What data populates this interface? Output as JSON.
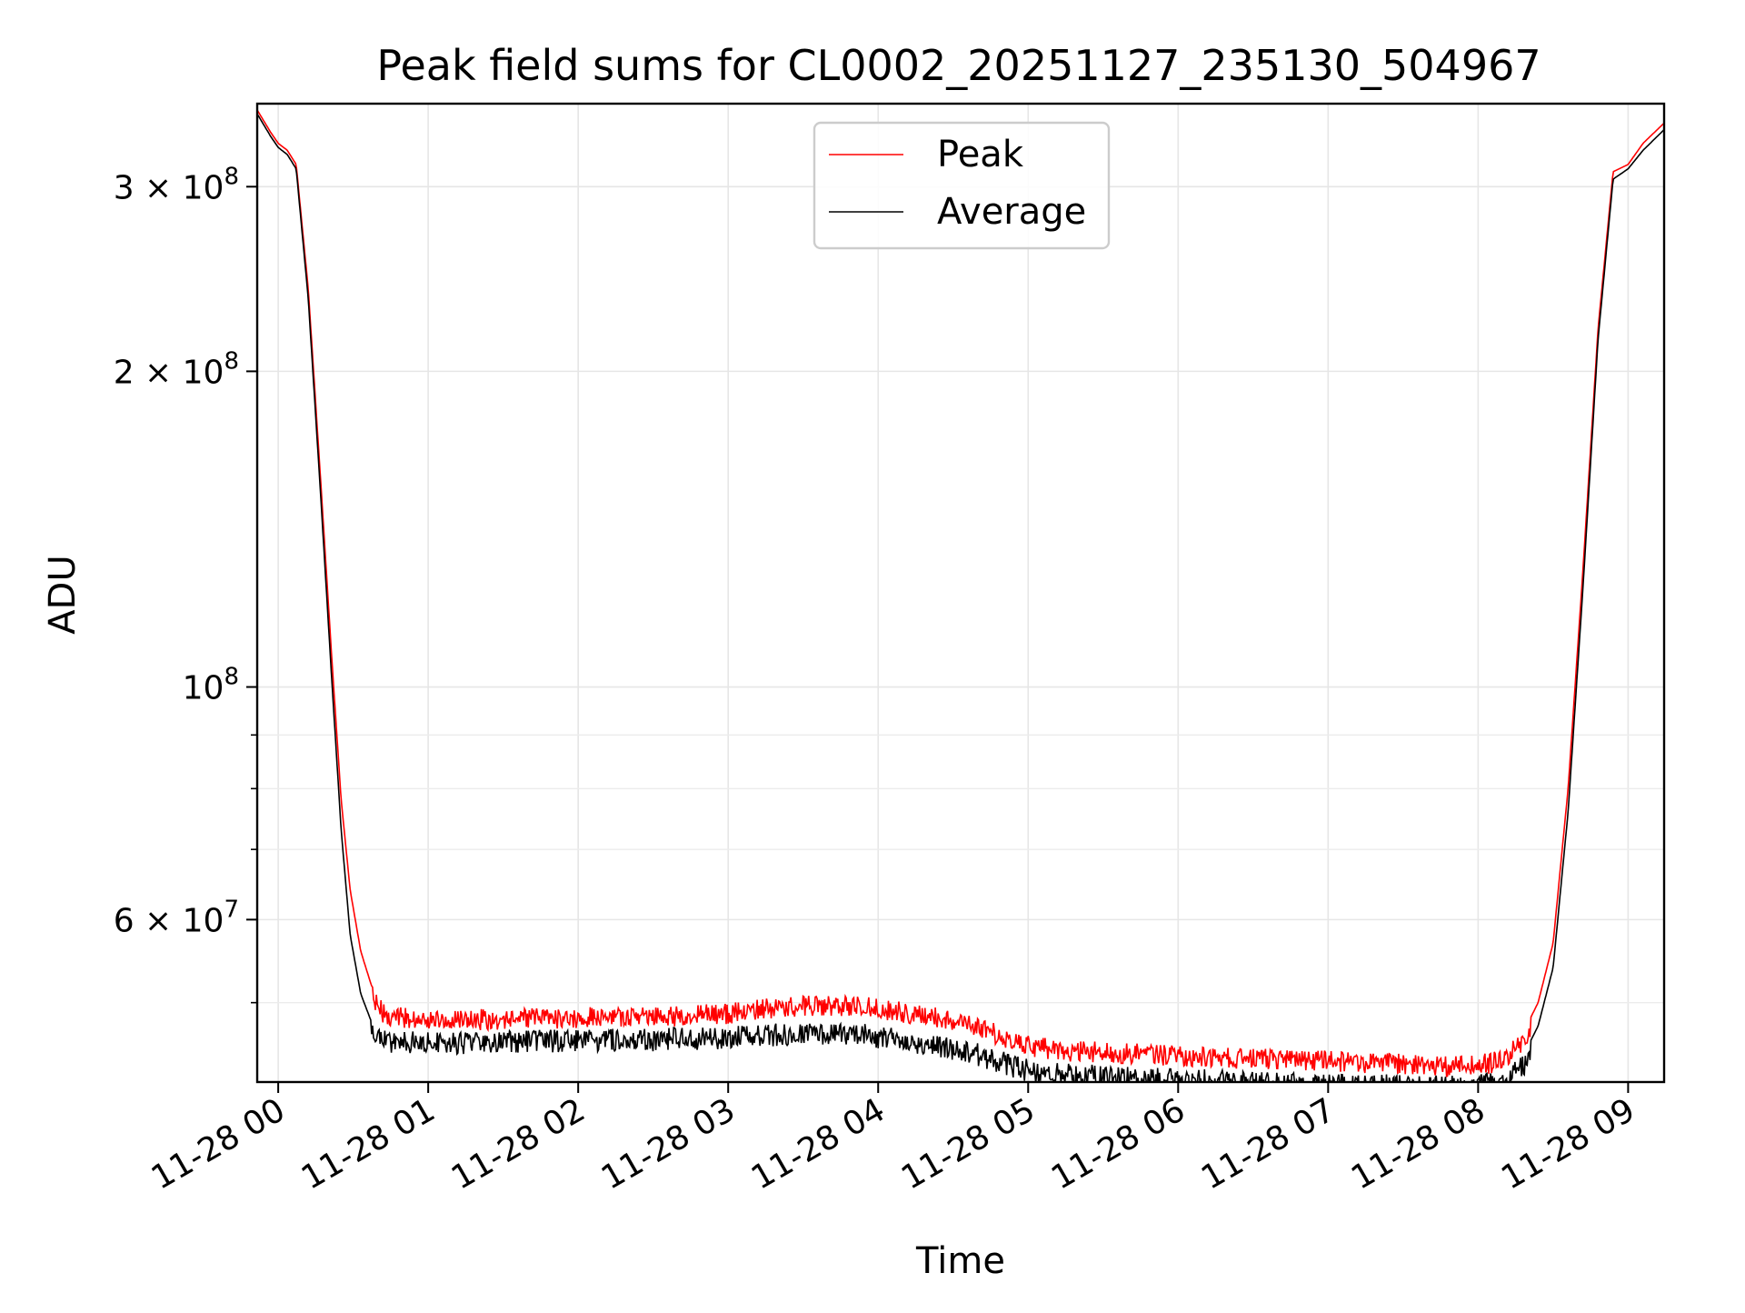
{
  "chart_data": {
    "type": "line",
    "title": "Peak field sums for CL0002_20251127_235130_504967",
    "xlabel": "Time",
    "ylabel": "ADU",
    "yscale": "log",
    "xlim_hours": [
      -0.14,
      9.24
    ],
    "ylim": [
      42000000,
      360000000
    ],
    "grid": true,
    "legend_position": "upper center",
    "x_ticks": [
      {
        "hour": 0,
        "label": "11-28 00"
      },
      {
        "hour": 1,
        "label": "11-28 01"
      },
      {
        "hour": 2,
        "label": "11-28 02"
      },
      {
        "hour": 3,
        "label": "11-28 03"
      },
      {
        "hour": 4,
        "label": "11-28 04"
      },
      {
        "hour": 5,
        "label": "11-28 05"
      },
      {
        "hour": 6,
        "label": "11-28 06"
      },
      {
        "hour": 7,
        "label": "11-28 07"
      },
      {
        "hour": 8,
        "label": "11-28 08"
      },
      {
        "hour": 9,
        "label": "11-28 09"
      }
    ],
    "y_major_ticks": [
      {
        "value": 100000000,
        "base": "10",
        "exp": "8"
      },
      {
        "value": 60000000,
        "base": "6 × 10",
        "exp": "7"
      },
      {
        "value": 200000000,
        "base": "2 × 10",
        "exp": "8"
      },
      {
        "value": 300000000,
        "base": "3 × 10",
        "exp": "8"
      }
    ],
    "y_minor_ticks": [
      50000000,
      70000000,
      80000000,
      90000000
    ],
    "series": [
      {
        "name": "Peak",
        "color": "#ff0000",
        "noise": 0.045,
        "x_hours": [
          -0.14,
          -0.05,
          0.0,
          0.06,
          0.12,
          0.2,
          0.28,
          0.36,
          0.42,
          0.48,
          0.55,
          0.62,
          0.7,
          0.8,
          1.0,
          1.5,
          2.0,
          2.5,
          3.0,
          3.3,
          3.6,
          3.9,
          4.2,
          4.5,
          4.7,
          4.9,
          5.0,
          5.2,
          5.5,
          6.0,
          6.5,
          7.0,
          7.5,
          7.8,
          8.0,
          8.15,
          8.3,
          8.4,
          8.5,
          8.6,
          8.7,
          8.8,
          8.9,
          9.0,
          9.1,
          9.24
        ],
        "values": [
          355000000,
          338000000,
          330000000,
          325000000,
          315000000,
          240000000,
          160000000,
          105000000,
          78000000,
          64000000,
          56000000,
          52000000,
          50000000,
          49500000,
          49300000,
          49300000,
          49500000,
          49600000,
          49900000,
          50600000,
          50900000,
          50700000,
          50000000,
          49200000,
          48300000,
          47000000,
          46600000,
          46000000,
          45900000,
          45500000,
          45200000,
          45000000,
          44700000,
          44500000,
          44600000,
          45000000,
          46800000,
          50000000,
          57000000,
          80000000,
          130000000,
          220000000,
          310000000,
          315000000,
          330000000,
          345000000
        ]
      },
      {
        "name": "Average",
        "color": "#000000",
        "noise": 0.05,
        "x_hours": [
          -0.14,
          -0.05,
          0.0,
          0.06,
          0.12,
          0.2,
          0.28,
          0.36,
          0.42,
          0.48,
          0.55,
          0.62,
          0.7,
          0.8,
          1.0,
          1.5,
          2.0,
          2.5,
          3.0,
          3.3,
          3.6,
          3.9,
          4.2,
          4.5,
          4.7,
          4.9,
          5.0,
          5.2,
          5.5,
          6.0,
          6.5,
          7.0,
          7.5,
          7.8,
          8.0,
          8.15,
          8.3,
          8.4,
          8.5,
          8.6,
          8.7,
          8.8,
          8.9,
          9.0,
          9.1,
          9.24
        ],
        "values": [
          352000000,
          335000000,
          327000000,
          322000000,
          312000000,
          235000000,
          155000000,
          100000000,
          73000000,
          58000000,
          51000000,
          48000000,
          47300000,
          47000000,
          47000000,
          47000000,
          47200000,
          47300000,
          47500000,
          47800000,
          48000000,
          47800000,
          47200000,
          46400000,
          45600000,
          44600000,
          44200000,
          43800000,
          43600000,
          43300000,
          43000000,
          42900000,
          42700000,
          42600000,
          42700000,
          43000000,
          44500000,
          47500000,
          54000000,
          76000000,
          125000000,
          215000000,
          305000000,
          312000000,
          325000000,
          340000000
        ]
      }
    ]
  }
}
